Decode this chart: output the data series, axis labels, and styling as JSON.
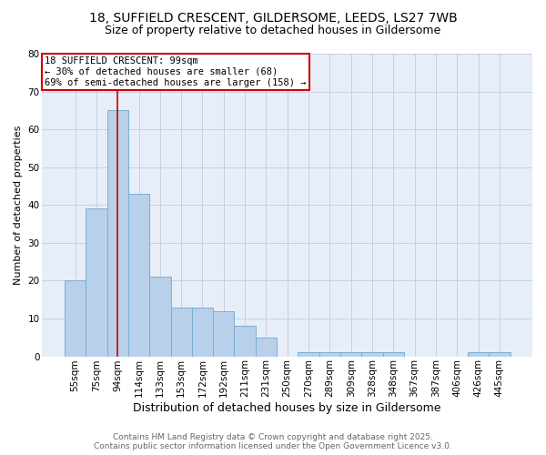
{
  "title1": "18, SUFFIELD CRESCENT, GILDERSOME, LEEDS, LS27 7WB",
  "title2": "Size of property relative to detached houses in Gildersome",
  "xlabel": "Distribution of detached houses by size in Gildersome",
  "ylabel": "Number of detached properties",
  "categories": [
    "55sqm",
    "75sqm",
    "94sqm",
    "114sqm",
    "133sqm",
    "153sqm",
    "172sqm",
    "192sqm",
    "211sqm",
    "231sqm",
    "250sqm",
    "270sqm",
    "289sqm",
    "309sqm",
    "328sqm",
    "348sqm",
    "367sqm",
    "387sqm",
    "406sqm",
    "426sqm",
    "445sqm"
  ],
  "values": [
    20,
    39,
    65,
    43,
    21,
    13,
    13,
    12,
    8,
    5,
    0,
    1,
    1,
    1,
    1,
    1,
    0,
    0,
    0,
    1,
    1
  ],
  "bar_color": "#b8d0ea",
  "bar_edge_color": "#7aafd4",
  "vline_index": 2,
  "vline_color": "#cc0000",
  "annotation_title": "18 SUFFIELD CRESCENT: 99sqm",
  "annotation_line2": "← 30% of detached houses are smaller (68)",
  "annotation_line3": "69% of semi-detached houses are larger (158) →",
  "annotation_box_color": "#cc0000",
  "ylim": [
    0,
    80
  ],
  "yticks": [
    0,
    10,
    20,
    30,
    40,
    50,
    60,
    70,
    80
  ],
  "footer1": "Contains HM Land Registry data © Crown copyright and database right 2025.",
  "footer2": "Contains public sector information licensed under the Open Government Licence v3.0.",
  "bg_color": "#e8eef8",
  "title1_fontsize": 10,
  "title2_fontsize": 9,
  "xlabel_fontsize": 9,
  "ylabel_fontsize": 8,
  "tick_fontsize": 7.5,
  "footer_fontsize": 6.5,
  "ann_fontsize": 7.5
}
